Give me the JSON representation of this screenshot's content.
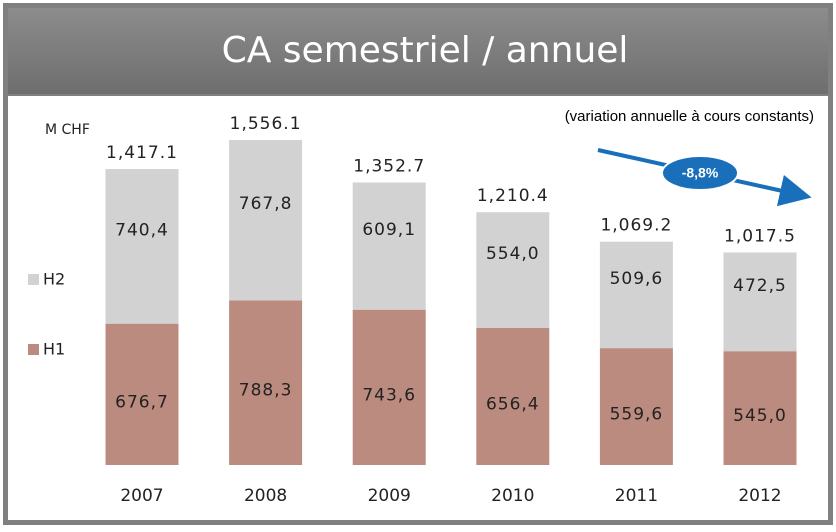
{
  "chart_data": {
    "type": "stacked_bar",
    "title": "CA semestriel / annuel",
    "subtitle": "(variation annuelle à cours constants)",
    "unit_label": "M CHF",
    "annotation": "-8,8%",
    "categories": [
      "2007",
      "2008",
      "2009",
      "2010",
      "2011",
      "2012"
    ],
    "series": [
      {
        "name": "H1",
        "color": "#bc8b7f",
        "values": [
          676.7,
          788.3,
          743.6,
          656.4,
          559.6,
          545.0
        ],
        "value_labels": [
          "676,7",
          "788,3",
          "743,6",
          "656,4",
          "559,6",
          "545,0"
        ]
      },
      {
        "name": "H2",
        "color": "#d2d2d2",
        "values": [
          740.4,
          767.8,
          609.1,
          554.0,
          509.6,
          472.5
        ],
        "value_labels": [
          "740,4",
          "767,8",
          "609,1",
          "554,0",
          "509,6",
          "472,5"
        ]
      }
    ],
    "totals": {
      "values": [
        1417.1,
        1556.1,
        1352.7,
        1210.4,
        1069.2,
        1017.5
      ],
      "value_labels": [
        "1,417.1",
        "1,556.1",
        "1,352.7",
        "1,210.4",
        "1,069.2",
        "1,017.5"
      ]
    }
  }
}
